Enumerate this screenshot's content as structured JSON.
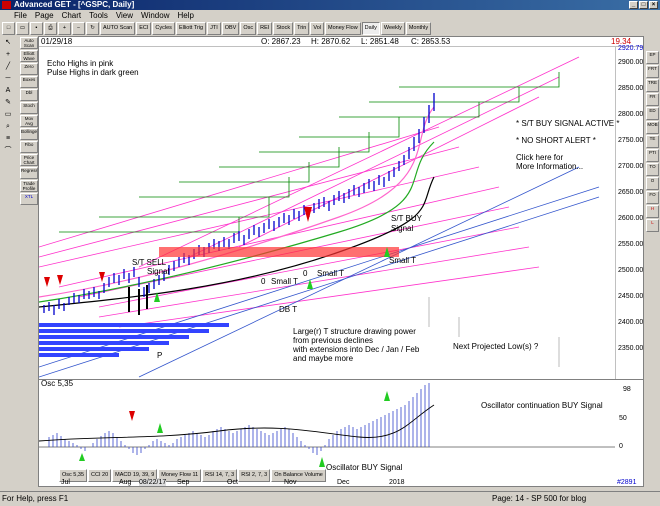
{
  "app": {
    "title": "Advanced GET - [^GSPC, Daily]"
  },
  "menu": [
    "File",
    "Page",
    "Chart",
    "Tools",
    "View",
    "Window",
    "Help"
  ],
  "toolbar": [
    "AUTO Scan",
    "ECI",
    "Cycles",
    "Elliott Trig",
    "JTI",
    "OBV",
    "Osc",
    "REI",
    "Stock",
    "Trin",
    "Vol",
    "Money Flow",
    "Daily",
    "Weekly",
    "Monthly"
  ],
  "left_tools": [
    "Auto Scan",
    "Elliott Wave",
    "Zero",
    "Boxes",
    "Dbl",
    "Stoch",
    "Mov Avg",
    "Bollinger",
    "Fibo",
    "Price Chart",
    "Regression",
    "Trade Profile",
    "XTL"
  ],
  "right_tools": [
    "EP",
    "FRT",
    "TRE",
    "FR",
    "ED",
    "MOB",
    "TE",
    "PTI",
    "TO",
    "O",
    "FO",
    "H",
    "L"
  ],
  "header": {
    "date": "01/29/18",
    "open": "O: 2867.23",
    "high": "H: 2870.62",
    "low": "L: 2851.48",
    "close": "C: 2853.53",
    "change": "19.34"
  },
  "price_axis": [
    "2920.79",
    "2900.00",
    "2850.00",
    "2800.00",
    "2750.00",
    "2700.00",
    "2650.00",
    "2600.00",
    "2550.00",
    "2500.00",
    "2450.00",
    "2400.00",
    "2350.00"
  ],
  "annotations": {
    "echo": "Echo Highs in pink",
    "pulse": "Pulse Highs in dark green",
    "buy_active": "* S/T BUY SIGNAL ACTIVE *",
    "no_short": "* NO SHORT ALERT *",
    "click1": "Click here for",
    "click2": "More Information...",
    "st_buy1": "S/T BUY",
    "st_buy2": "Signal",
    "st_sell1": "S/T SELL",
    "st_sell2": "Signal",
    "small_t": "Small T",
    "small_t2": "Small T",
    "small_t3": "Small  T",
    "db_t": "DB T",
    "zero1": "0",
    "zero2": "0",
    "p": "P",
    "large_t1": "Large(r) T structure drawing power",
    "large_t2": "from previous declines",
    "large_t3": "with extensions into Dec / Jan / Feb",
    "large_t4": "and maybe more",
    "next_low": "Next Projected Low(s) ?",
    "osc_buy": "Oscillator BUY Signal",
    "osc_cont": "Oscillator continuation BUY Signal"
  },
  "osc": {
    "label": "Osc 5,35",
    "value": "98",
    "axis": [
      "50",
      "0"
    ]
  },
  "osc_tabs": [
    "Osc 5,35",
    "CCI 20",
    "MACD 19, 39, 9",
    "Money Flow 11",
    "RSI 14, 7, 3",
    "RSI 2, 7, 3",
    "On Balance Volume"
  ],
  "x_axis": [
    "Jul",
    "Aug",
    "08/22/17",
    "Sep",
    "Oct",
    "Nov",
    "Dec",
    "2018",
    "#2891"
  ],
  "status": {
    "left": "For Help, press F1",
    "right": "Page: 14 - SP 500 for blog"
  },
  "colors": {
    "echo": "#ff33cc",
    "pulse": "#008800",
    "candle": "#0000cc",
    "buy_arrow": "#22cc22",
    "sell_arrow": "#dd0000"
  }
}
